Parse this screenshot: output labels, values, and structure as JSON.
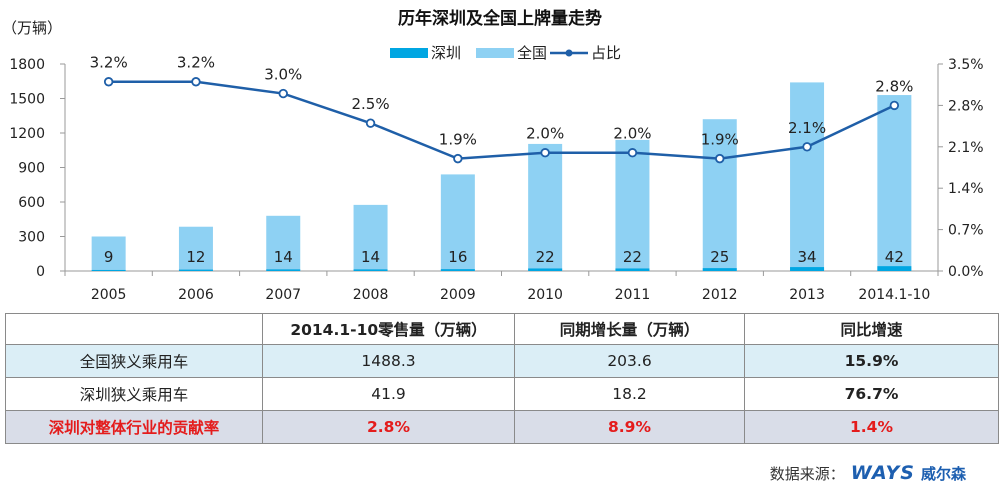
{
  "chart_data": {
    "type": "bar",
    "title": "历年深圳及全国上牌量走势",
    "y_unit": "（万辆）",
    "categories": [
      "2005",
      "2006",
      "2007",
      "2008",
      "2009",
      "2010",
      "2011",
      "2012",
      "2013",
      "2014.1-10"
    ],
    "series": [
      {
        "name": "深圳",
        "type": "bar",
        "color": "#00a6e2",
        "values": [
          9,
          12,
          14,
          14,
          16,
          22,
          22,
          25,
          34,
          42
        ]
      },
      {
        "name": "全国",
        "type": "bar",
        "color": "#8ed1f3",
        "values": [
          300,
          385,
          480,
          575,
          840,
          1105,
          1140,
          1320,
          1640,
          1530
        ]
      },
      {
        "name": "占比",
        "type": "line",
        "axis": "right",
        "color": "#1f5fa8",
        "values": [
          3.2,
          3.2,
          3.0,
          2.5,
          1.9,
          2.0,
          2.0,
          1.9,
          2.1,
          2.8
        ],
        "labels": [
          "3.2%",
          "3.2%",
          "3.0%",
          "2.5%",
          "1.9%",
          "2.0%",
          "2.0%",
          "1.9%",
          "2.1%",
          "2.8%"
        ]
      }
    ],
    "bar_labels": [
      "9",
      "12",
      "14",
      "14",
      "16",
      "22",
      "22",
      "25",
      "34",
      "42"
    ],
    "ylim": [
      0,
      1800
    ],
    "yticks": [
      "0",
      "300",
      "600",
      "900",
      "1200",
      "1500",
      "1800"
    ],
    "y2lim": [
      0,
      3.5
    ],
    "y2ticks": [
      "0.0%",
      "0.7%",
      "1.4%",
      "2.1%",
      "2.8%",
      "3.5%"
    ],
    "legend": "top-center",
    "grid": false
  },
  "table": {
    "headers": [
      "",
      "2014.1-10零售量（万辆）",
      "同期增长量（万辆）",
      "同比增速"
    ],
    "rows": [
      {
        "label": "全国狭义乘用车",
        "retail": "1488.3",
        "growth": "203.6",
        "rate": "15.9%"
      },
      {
        "label": "深圳狭义乘用车",
        "retail": "41.9",
        "growth": "18.2",
        "rate": "76.7%"
      },
      {
        "label": "深圳对整体行业的贡献率",
        "retail": "2.8%",
        "growth": "8.9%",
        "rate": "1.4%"
      }
    ]
  },
  "footer": {
    "source_label": "数据来源：",
    "logo_text": "WAYS",
    "logo_cn": "威尔森"
  }
}
